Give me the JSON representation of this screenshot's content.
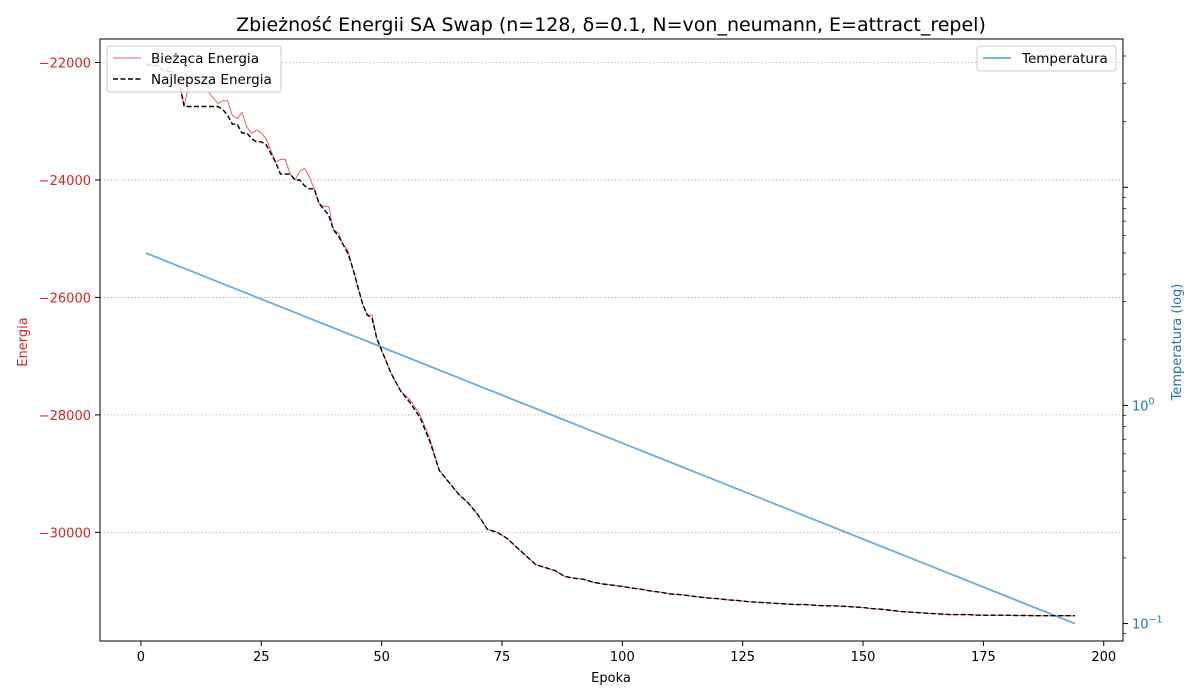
{
  "chart_data": {
    "type": "line",
    "title": "Zbieżność Energii SA Swap (n=128, δ=0.1, N=von_neumann, E=attract_repel)",
    "xlabel": "Epoka",
    "ylabel_left": "Energia",
    "ylabel_right": "Temperatura (log)",
    "xlim": [
      -8.5,
      204
    ],
    "ylim_left": [
      -31850,
      -21600
    ],
    "ylim_right_log10": [
      -1.08,
      1.68
    ],
    "x_ticks": [
      0,
      25,
      50,
      75,
      100,
      125,
      150,
      175,
      200
    ],
    "y_left_ticks": [
      -22000,
      -24000,
      -26000,
      -28000,
      -30000
    ],
    "y_left_tick_labels": [
      "−22000",
      "−24000",
      "−26000",
      "−28000",
      "−30000"
    ],
    "y_right_ticks": [
      {
        "base": "10",
        "exp": "0",
        "log10": 0
      },
      {
        "base": "10",
        "exp": "−1",
        "log10": -1
      }
    ],
    "grid": "y-dotted",
    "colors": {
      "energy": "#d62728",
      "temperature": "#1f77b4",
      "temperature_line": "#6baed6",
      "best": "#000000",
      "grid": "#b0b0b0"
    },
    "legend_left": {
      "placement": "top-left",
      "entries": [
        {
          "name": "Bieżąca Energia",
          "style": "solid",
          "color": "#e06666"
        },
        {
          "name": "Najlepsza Energia",
          "style": "dashed",
          "color": "#000000"
        }
      ]
    },
    "legend_right": {
      "placement": "top-right",
      "entries": [
        {
          "name": "Temperatura",
          "style": "solid",
          "color": "#6baed6"
        }
      ]
    },
    "series": [
      {
        "name": "Bieżąca Energia",
        "x": [
          1,
          2,
          3,
          4,
          5,
          6,
          7,
          8,
          9,
          10,
          11,
          12,
          13,
          14,
          15,
          16,
          17,
          18,
          19,
          20,
          21,
          22,
          23,
          24,
          25,
          26,
          27,
          28,
          29,
          30,
          31,
          32,
          33,
          34,
          35,
          36,
          37,
          38,
          39,
          40,
          41,
          42,
          43,
          44,
          45,
          46,
          47,
          48,
          49,
          50,
          52,
          54,
          56,
          58,
          60,
          62,
          64,
          66,
          68,
          70,
          72,
          74,
          76,
          78,
          80,
          82,
          84,
          86,
          88,
          90,
          92,
          94,
          96,
          98,
          100,
          102,
          104,
          106,
          108,
          110,
          112,
          114,
          116,
          118,
          120,
          122,
          124,
          126,
          128,
          130,
          132,
          134,
          136,
          138,
          140,
          142,
          144,
          146,
          148,
          150,
          152,
          154,
          156,
          158,
          160,
          162,
          164,
          166,
          168,
          170,
          172,
          174,
          176,
          178,
          180,
          182,
          184,
          186,
          188,
          190,
          192,
          194
        ],
        "values": [
          -22020,
          -22050,
          -21980,
          -22100,
          -22150,
          -22080,
          -22250,
          -22350,
          -22750,
          -22350,
          -22400,
          -22300,
          -22450,
          -22500,
          -22600,
          -22700,
          -22650,
          -22650,
          -22900,
          -22950,
          -22850,
          -23100,
          -23200,
          -23150,
          -23200,
          -23300,
          -23500,
          -23700,
          -23650,
          -23650,
          -23900,
          -24000,
          -23850,
          -23800,
          -23950,
          -24150,
          -24400,
          -24450,
          -24450,
          -24850,
          -24900,
          -25100,
          -25200,
          -25500,
          -25800,
          -26100,
          -26300,
          -26300,
          -26700,
          -26900,
          -27300,
          -27600,
          -27750,
          -28000,
          -28400,
          -28950,
          -29150,
          -29350,
          -29500,
          -29700,
          -29950,
          -30000,
          -30100,
          -30250,
          -30400,
          -30550,
          -30600,
          -30650,
          -30750,
          -30780,
          -30800,
          -30850,
          -30880,
          -30900,
          -30920,
          -30950,
          -30970,
          -31000,
          -31020,
          -31050,
          -31060,
          -31080,
          -31100,
          -31120,
          -31130,
          -31150,
          -31160,
          -31180,
          -31190,
          -31200,
          -31210,
          -31220,
          -31230,
          -31230,
          -31240,
          -31250,
          -31250,
          -31260,
          -31270,
          -31280,
          -31300,
          -31310,
          -31330,
          -31350,
          -31360,
          -31370,
          -31380,
          -31390,
          -31400,
          -31400,
          -31400,
          -31410,
          -31410,
          -31410,
          -31410,
          -31415,
          -31415,
          -31420,
          -31420,
          -31420,
          -31420,
          -31420
        ]
      },
      {
        "name": "Najlepsza Energia",
        "x": [
          1,
          2,
          3,
          4,
          5,
          6,
          7,
          8,
          9,
          10,
          11,
          12,
          13,
          14,
          15,
          16,
          17,
          18,
          19,
          20,
          21,
          22,
          23,
          24,
          25,
          26,
          27,
          28,
          29,
          30,
          31,
          32,
          33,
          34,
          35,
          36,
          37,
          38,
          39,
          40,
          41,
          42,
          43,
          44,
          45,
          46,
          47,
          48,
          49,
          50,
          52,
          54,
          56,
          58,
          60,
          62,
          64,
          66,
          68,
          70,
          72,
          74,
          76,
          78,
          80,
          82,
          84,
          86,
          88,
          90,
          92,
          94,
          96,
          98,
          100,
          102,
          104,
          106,
          108,
          110,
          112,
          114,
          116,
          118,
          120,
          122,
          124,
          126,
          128,
          130,
          132,
          134,
          136,
          138,
          140,
          142,
          144,
          146,
          148,
          150,
          152,
          154,
          156,
          158,
          160,
          162,
          164,
          166,
          168,
          170,
          172,
          174,
          176,
          178,
          180,
          182,
          184,
          186,
          188,
          190,
          192,
          194
        ],
        "values": [
          -22020,
          -22050,
          -22050,
          -22100,
          -22150,
          -22150,
          -22250,
          -22350,
          -22750,
          -22750,
          -22750,
          -22750,
          -22750,
          -22750,
          -22750,
          -22750,
          -22800,
          -22900,
          -23050,
          -23050,
          -23200,
          -23200,
          -23300,
          -23350,
          -23350,
          -23400,
          -23550,
          -23700,
          -23900,
          -23900,
          -23900,
          -24000,
          -24000,
          -24100,
          -24150,
          -24150,
          -24400,
          -24500,
          -24600,
          -24850,
          -24950,
          -25100,
          -25250,
          -25500,
          -25800,
          -26100,
          -26300,
          -26350,
          -26700,
          -26900,
          -27300,
          -27600,
          -27800,
          -28050,
          -28450,
          -28950,
          -29150,
          -29350,
          -29500,
          -29700,
          -29950,
          -30000,
          -30100,
          -30250,
          -30400,
          -30550,
          -30600,
          -30650,
          -30750,
          -30780,
          -30800,
          -30850,
          -30880,
          -30900,
          -30920,
          -30950,
          -30970,
          -31000,
          -31020,
          -31050,
          -31060,
          -31080,
          -31100,
          -31120,
          -31130,
          -31150,
          -31160,
          -31180,
          -31190,
          -31200,
          -31210,
          -31220,
          -31230,
          -31230,
          -31240,
          -31250,
          -31250,
          -31260,
          -31270,
          -31280,
          -31300,
          -31310,
          -31330,
          -31350,
          -31360,
          -31370,
          -31380,
          -31390,
          -31400,
          -31400,
          -31400,
          -31410,
          -31410,
          -31410,
          -31410,
          -31415,
          -31415,
          -31420,
          -31420,
          -31420,
          -31420,
          -31420
        ]
      },
      {
        "name": "Temperatura",
        "axis": "right-log",
        "x": [
          1,
          194
        ],
        "values": [
          5.0,
          0.1
        ]
      }
    ]
  }
}
